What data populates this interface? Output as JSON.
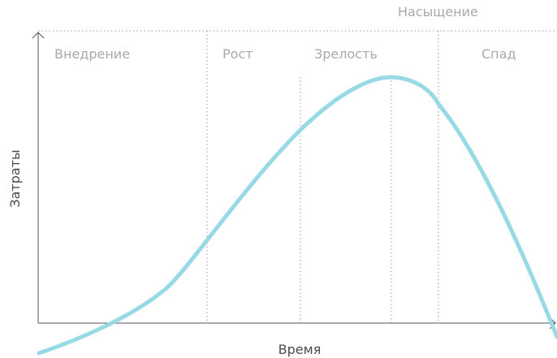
{
  "diagram": {
    "type": "product-life-cycle",
    "axes": {
      "x_label": "Время",
      "y_label": "Затраты"
    },
    "stages": [
      {
        "label": "Внедрение"
      },
      {
        "label": "Рост"
      },
      {
        "label": "Зрелость"
      },
      {
        "label": "Насыщение"
      },
      {
        "label": "Спад"
      }
    ],
    "colors": {
      "curve": "#98d9e6",
      "axis": "#555555",
      "guide": "#999999",
      "stage_text": "#a9a9a9",
      "axis_text": "#4a4a4a"
    }
  }
}
